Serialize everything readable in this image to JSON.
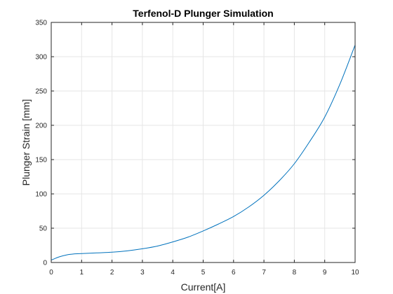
{
  "chart_data": {
    "type": "line",
    "title": "Terfenol-D Plunger Simulation",
    "xlabel": "Current[A]",
    "ylabel": "Plunger Strain [mm]",
    "xlim": [
      0,
      10
    ],
    "ylim": [
      0,
      350
    ],
    "xticks": [
      0,
      1,
      2,
      3,
      4,
      5,
      6,
      7,
      8,
      9,
      10
    ],
    "yticks": [
      0,
      50,
      100,
      150,
      200,
      250,
      300,
      350
    ],
    "grid": true,
    "series": [
      {
        "color": "#0072BD",
        "x": [
          0,
          0.25,
          0.5,
          0.75,
          1,
          1.5,
          2,
          2.5,
          3,
          3.5,
          4,
          4.5,
          5,
          5.5,
          6,
          6.5,
          7,
          7.5,
          8,
          8.5,
          9,
          9.5,
          10
        ],
        "y": [
          3.5,
          8,
          11,
          12.5,
          13,
          14,
          15,
          17,
          20,
          24,
          30,
          37,
          46,
          56,
          67,
          81,
          98,
          119,
          144,
          176,
          212,
          260,
          317
        ]
      }
    ]
  }
}
